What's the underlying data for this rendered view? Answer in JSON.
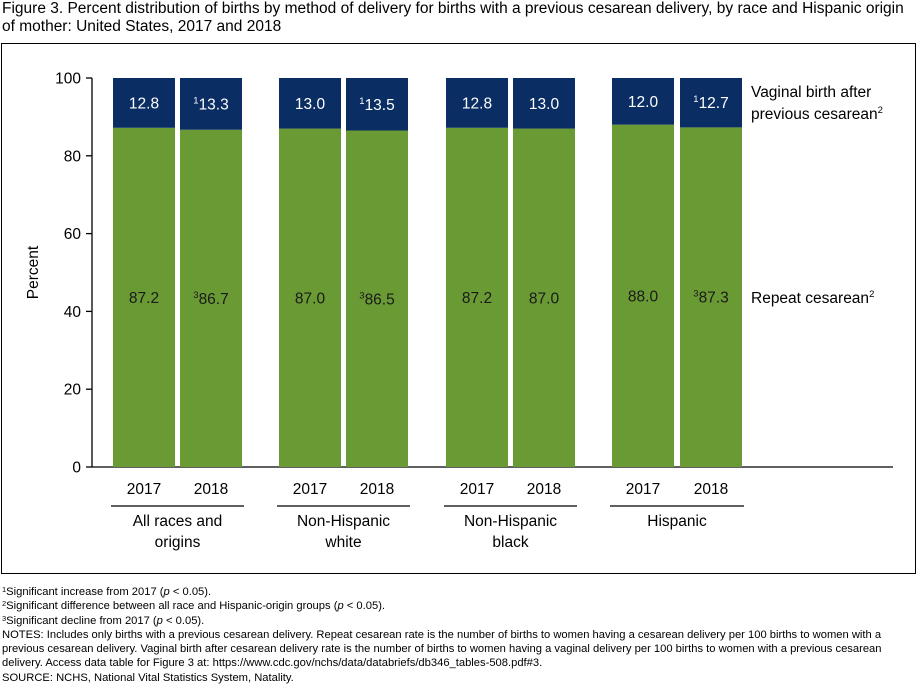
{
  "title": "Figure 3. Percent distribution of births by method of delivery for births with a previous cesarean delivery, by race and Hispanic origin of mother: United States, 2017 and 2018",
  "colors": {
    "repeat": "#6a9a34",
    "vbac": "#0a2d63",
    "bar_text_light": "#ffffff",
    "bar_text_dark": "#1a1a1a"
  },
  "chart_data": {
    "type": "bar",
    "stacked": true,
    "ylabel": "Percent",
    "ylim": [
      0,
      100
    ],
    "yticks": [
      "0",
      "20",
      "40",
      "60",
      "80",
      "100"
    ],
    "groups": [
      {
        "label_lines": [
          "All races and",
          "origins"
        ],
        "categories": [
          "2017",
          "2018"
        ]
      },
      {
        "label_lines": [
          "Non-Hispanic",
          "white"
        ],
        "categories": [
          "2017",
          "2018"
        ]
      },
      {
        "label_lines": [
          "Non-Hispanic",
          "black"
        ],
        "categories": [
          "2017",
          "2018"
        ]
      },
      {
        "label_lines": [
          "Hispanic"
        ],
        "categories": [
          "2017",
          "2018"
        ]
      }
    ],
    "series": [
      {
        "name": "Repeat cesarean",
        "name_sup": "2",
        "values": [
          87.2,
          86.7,
          87.0,
          86.5,
          87.2,
          87.0,
          88.0,
          87.3
        ],
        "labels": [
          "87.2",
          "86.7",
          "87.0",
          "86.5",
          "87.2",
          "87.0",
          "88.0",
          "87.3"
        ],
        "label_sups": [
          "",
          "3",
          "",
          "3",
          "",
          "",
          "",
          "3"
        ]
      },
      {
        "name_lines": [
          "Vaginal birth after",
          "previous cesarean"
        ],
        "name_sup": "2",
        "values": [
          12.8,
          13.3,
          13.0,
          13.5,
          12.8,
          13.0,
          12.0,
          12.7
        ],
        "labels": [
          "12.8",
          "13.3",
          "13.0",
          "13.5",
          "12.8",
          "13.0",
          "12.0",
          "12.7"
        ],
        "label_sups": [
          "",
          "1",
          "",
          "1",
          "",
          "",
          "",
          "1"
        ]
      }
    ]
  },
  "footnotes": [
    {
      "sup": "1",
      "text": "Significant increase from 2017 (",
      "italic": "p",
      "after": " < 0.05)."
    },
    {
      "sup": "2",
      "text": "Significant difference between all race and Hispanic-origin groups (",
      "italic": "p",
      "after": " < 0.05)."
    },
    {
      "sup": "3",
      "text": "Significant decline from 2017 (",
      "italic": "p",
      "after": " < 0.05)."
    }
  ],
  "notes": "NOTES: Includes only births with a previous cesarean delivery. Repeat cesarean rate is the number of births to women having a cesarean delivery per 100 births to women with a previous cesarean delivery. Vaginal birth after cesarean delivery rate is the number of births to women having a vaginal delivery per 100 births to women with a previous cesarean delivery. Access data table for Figure 3 at: https://www.cdc.gov/nchs/data/databriefs/db346_tables-508.pdf#3.",
  "source": "SOURCE: NCHS, National Vital Statistics System, Natality."
}
